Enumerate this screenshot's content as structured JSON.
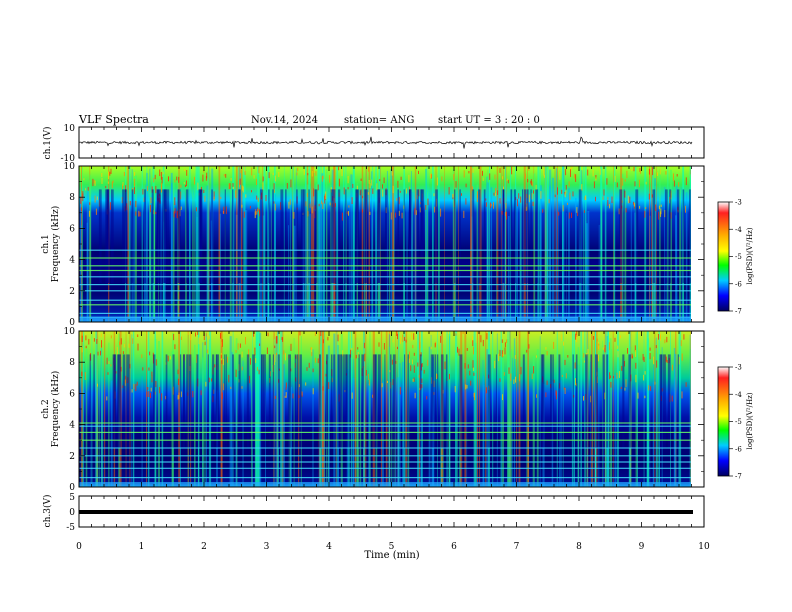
{
  "header": {
    "title": "VLF Spectra",
    "date": "Nov.14, 2024",
    "station": "station= ANG",
    "start": "start  UT =   3  : 20 : 0"
  },
  "colors": {
    "spectrogram_low": "#000080",
    "spectrogram_mid": "#00ff00",
    "spectrogram_high": "#ff0000",
    "trace": "#000000"
  },
  "chart_data": [
    {
      "type": "line",
      "name": "ch1-waveform",
      "ylabel": "ch.1(V)",
      "ylim": [
        -10,
        10
      ],
      "yticks": [
        "10",
        "-10"
      ],
      "xlim": [
        0,
        10
      ],
      "note_values": "noisy waveform centred near 0 V, amplitude about ±1 V with spikes to ±4 V"
    },
    {
      "type": "heatmap",
      "name": "ch1-spectrogram",
      "ylabel": "ch.1\nFrequency (kHz)",
      "ylim": [
        0,
        10
      ],
      "yticks": [
        "0",
        "2",
        "4",
        "6",
        "8",
        "10"
      ],
      "xlim": [
        0,
        10
      ],
      "colorbar": {
        "label": "log(PSD)(V²/Hz)",
        "range": [
          -7,
          -3
        ],
        "ticks": [
          "-3",
          "-4",
          "-5",
          "-6",
          "-7"
        ]
      },
      "horizontal_lines_khz": [
        0.3,
        0.55,
        1.1,
        1.4,
        2.0,
        2.4,
        2.9,
        3.3,
        3.6,
        4.1,
        4.6
      ]
    },
    {
      "type": "heatmap",
      "name": "ch2-spectrogram",
      "ylabel": "ch.2\nFrequency (kHz)",
      "ylim": [
        0,
        10
      ],
      "yticks": [
        "0",
        "2",
        "4",
        "6",
        "8",
        "10"
      ],
      "xlim": [
        0,
        10
      ],
      "colorbar": {
        "label": "log(PSD)(V²/Hz)",
        "range": [
          -7,
          -3
        ],
        "ticks": [
          "-3",
          "-4",
          "-5",
          "-6",
          "-7"
        ]
      },
      "horizontal_lines_khz": [
        0.6,
        1.2,
        1.6,
        2.0,
        2.5,
        3.0,
        3.5,
        3.9,
        4.1
      ]
    },
    {
      "type": "line",
      "name": "ch3-waveform",
      "ylabel": "ch.3(V)",
      "ylim": [
        -5,
        5
      ],
      "yticks": [
        "5",
        "0",
        "-5"
      ],
      "xlim": [
        0,
        10
      ],
      "level": -1
    }
  ],
  "xaxis": {
    "label": "Time  (min)",
    "ticks": [
      "0",
      "1",
      "2",
      "3",
      "4",
      "5",
      "6",
      "7",
      "8",
      "9",
      "10"
    ]
  }
}
